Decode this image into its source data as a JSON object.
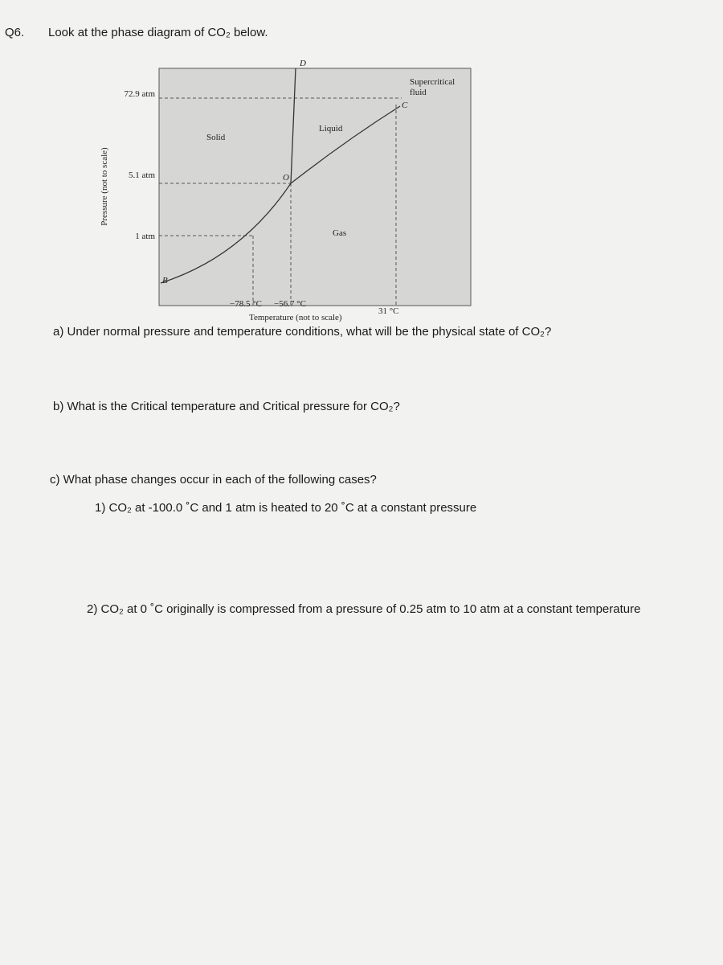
{
  "question": {
    "number": "Q6.",
    "prompt": "Look at the phase diagram of CO₂ below."
  },
  "diagram": {
    "point_d": "D",
    "supercritical": [
      "Supercritical",
      "fluid"
    ],
    "point_c": "C",
    "pressure_high": "72.9 atm",
    "region_liquid": "Liquid",
    "region_solid": "Solid",
    "point_o": "O",
    "pressure_mid": "5.1 atm",
    "pressure_low": "1 atm",
    "region_gas": "Gas",
    "point_b": "B",
    "y_axis_label": "Pressure (not to scale)",
    "temp_sublimation": "−78.5 °C",
    "temp_triple": "−56.7 °C",
    "temp_critical": "31 °C",
    "x_axis_label": "Temperature (not to scale)"
  },
  "parts": {
    "a": "a) Under normal pressure and temperature conditions, what will be the physical state of CO₂?",
    "b": "b) What is the Critical temperature and Critical pressure for CO₂?",
    "c": "c) What phase changes occur in each of the following cases?",
    "c1": "1) CO₂ at -100.0 ˚C and 1 atm is heated to 20 ˚C at a constant pressure",
    "c2": "2) CO₂ at 0 ˚C originally is compressed from a pressure of 0.25 atm to 10 atm at a constant temperature"
  }
}
